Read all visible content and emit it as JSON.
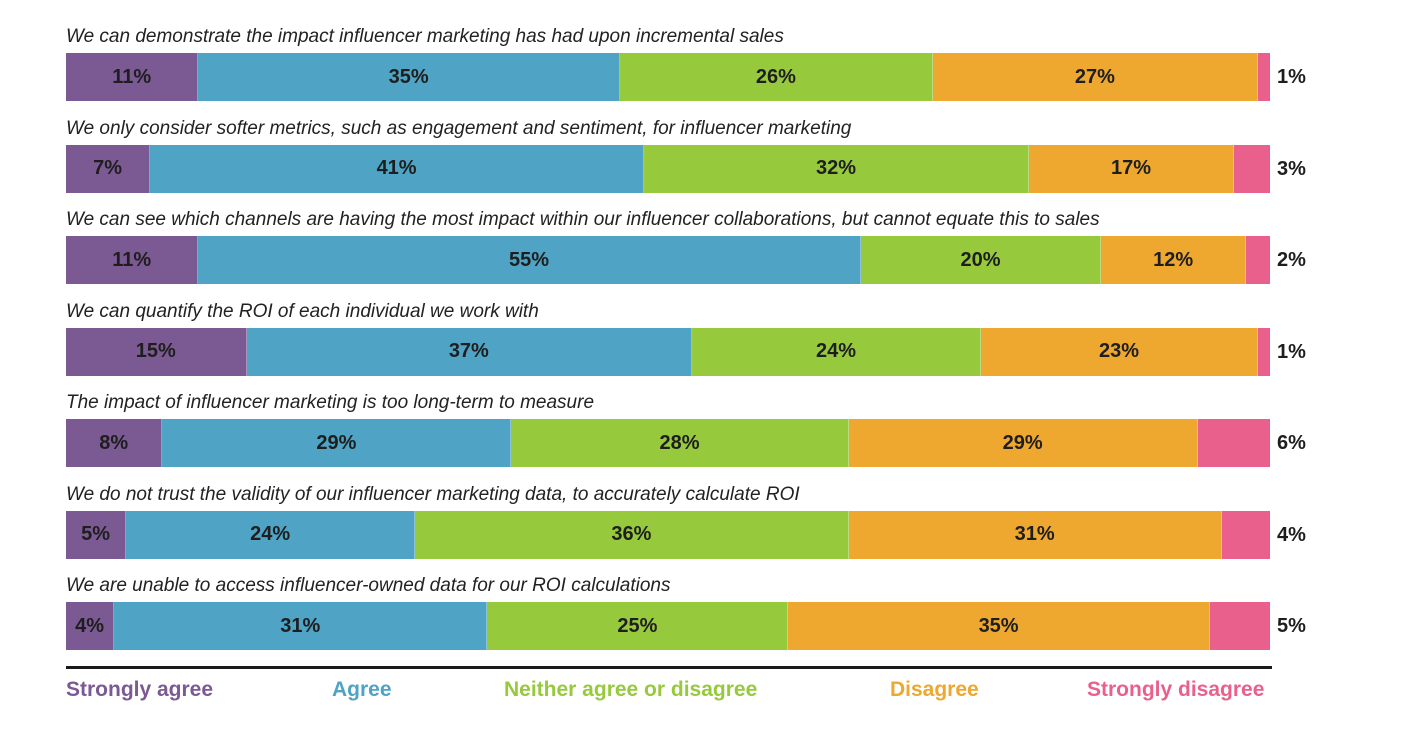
{
  "chart_data": {
    "type": "bar",
    "orientation": "horizontal",
    "stacked": true,
    "normalized_percent": true,
    "title": "",
    "xlabel": "",
    "ylabel": "",
    "categories": [
      "We can demonstrate the impact influencer marketing has had upon incremental sales",
      "We only consider softer metrics, such as engagement and sentiment, for influencer marketing",
      "We can see which channels are having the most impact within our influencer collaborations, but cannot equate this to sales",
      "We can quantify the ROI of each individual we work with",
      "The impact of influencer marketing is too long-term to measure",
      "We do not trust the validity of our influencer marketing data, to accurately calculate ROI",
      "We are unable to access influencer-owned data for our ROI calculations"
    ],
    "series": [
      {
        "name": "Strongly agree",
        "color": "#7b5a93",
        "values": [
          11,
          7,
          11,
          15,
          8,
          5,
          4
        ]
      },
      {
        "name": "Agree",
        "color": "#4fa3c4",
        "values": [
          35,
          41,
          55,
          37,
          29,
          24,
          31
        ]
      },
      {
        "name": "Neither agree or disagree",
        "color": "#97c93d",
        "values": [
          26,
          32,
          20,
          24,
          28,
          36,
          25
        ]
      },
      {
        "name": "Disagree",
        "color": "#eea72f",
        "values": [
          27,
          17,
          12,
          23,
          29,
          31,
          35
        ]
      },
      {
        "name": "Strongly disagree",
        "color": "#e9608c",
        "values": [
          1,
          3,
          2,
          1,
          6,
          4,
          5
        ]
      }
    ],
    "value_suffix": "%",
    "last_series_label_outside": true,
    "legend_position": "bottom",
    "grid": false
  }
}
